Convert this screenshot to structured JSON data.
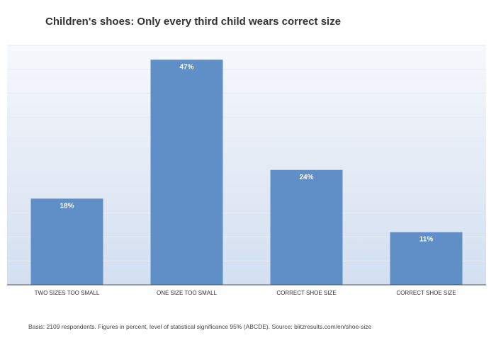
{
  "chart_data": {
    "type": "bar",
    "title": "Children's shoes: Only every third child wears correct size",
    "categories": [
      "TWO SIZES TOO SMALL",
      "ONE SIZE TOO SMALL",
      "CORRECT SHOE SIZE",
      "CORRECT SHOE SIZE"
    ],
    "values": [
      18,
      47,
      24,
      11
    ],
    "data_labels": [
      "18%",
      "47%",
      "24%",
      "11%"
    ],
    "xlabel": "",
    "ylabel": "",
    "ylim": [
      0,
      50
    ],
    "grid": true,
    "bar_color": "#5f8fc6",
    "background_gradient": [
      "#f6f8fc",
      "#d3dff0"
    ]
  },
  "footnote": "Basis: 2109 respondents. Figures in percent, level of statistical significance 95% (ABCDE). Source: blitzresults.com/en/shoe-size"
}
